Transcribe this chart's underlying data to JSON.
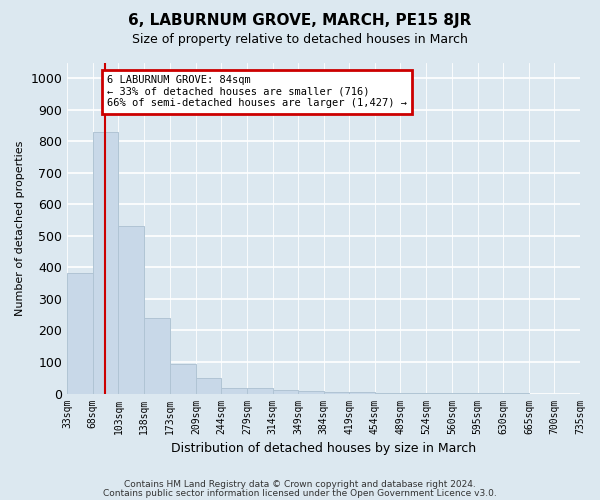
{
  "title": "6, LABURNUM GROVE, MARCH, PE15 8JR",
  "subtitle": "Size of property relative to detached houses in March",
  "xlabel": "Distribution of detached houses by size in March",
  "ylabel": "Number of detached properties",
  "bar_edges": [
    33,
    68,
    103,
    138,
    173,
    209,
    244,
    279,
    314,
    349,
    384,
    419,
    454,
    489,
    524,
    560,
    595,
    630,
    665,
    700,
    735
  ],
  "bar_heights": [
    383,
    830,
    530,
    240,
    93,
    50,
    18,
    17,
    11,
    8,
    6,
    5,
    3,
    2,
    2,
    1,
    1,
    1,
    0,
    0
  ],
  "bar_color": "#c8d8e8",
  "bar_edge_color": "#b0c4d4",
  "property_line_x": 84,
  "property_line_color": "#cc0000",
  "annotation_line1": "6 LABURNUM GROVE: 84sqm",
  "annotation_line2": "← 33% of detached houses are smaller (716)",
  "annotation_line3": "66% of semi-detached houses are larger (1,427) →",
  "annotation_box_color": "#cc0000",
  "ylim": [
    0,
    1050
  ],
  "yticks": [
    0,
    100,
    200,
    300,
    400,
    500,
    600,
    700,
    800,
    900,
    1000
  ],
  "background_color": "#dce8f0",
  "plot_bg_color": "#dce8f0",
  "grid_color": "#ffffff",
  "footer_line1": "Contains HM Land Registry data © Crown copyright and database right 2024.",
  "footer_line2": "Contains public sector information licensed under the Open Government Licence v3.0.",
  "tick_labels": [
    "33sqm",
    "68sqm",
    "103sqm",
    "138sqm",
    "173sqm",
    "209sqm",
    "244sqm",
    "279sqm",
    "314sqm",
    "349sqm",
    "384sqm",
    "419sqm",
    "454sqm",
    "489sqm",
    "524sqm",
    "560sqm",
    "595sqm",
    "630sqm",
    "665sqm",
    "700sqm",
    "735sqm"
  ]
}
